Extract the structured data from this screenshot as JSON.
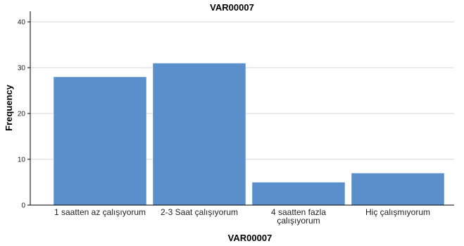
{
  "chart_data": {
    "type": "bar",
    "title": "VAR00007",
    "xlabel": "VAR00007",
    "ylabel": "Frequency",
    "categories": [
      "1 saatten az çalışıyorum",
      "2-3 Saat çalışıyorum",
      "4 saatten fazla çalışıyorum",
      "Hiç çalışmıyorum"
    ],
    "category_label_lines": [
      [
        "1 saatten az çalışıyorum"
      ],
      [
        "2-3 Saat çalışıyorum"
      ],
      [
        "4 saatten fazla",
        "çalışıyorum"
      ],
      [
        "Hiç çalışmıyorum"
      ]
    ],
    "values": [
      28,
      31,
      5,
      7
    ],
    "ylim": [
      0,
      40
    ],
    "yticks": [
      0,
      10,
      20,
      30,
      40
    ],
    "grid": true,
    "legend": "none",
    "bar_color": "#5b8fcc"
  }
}
